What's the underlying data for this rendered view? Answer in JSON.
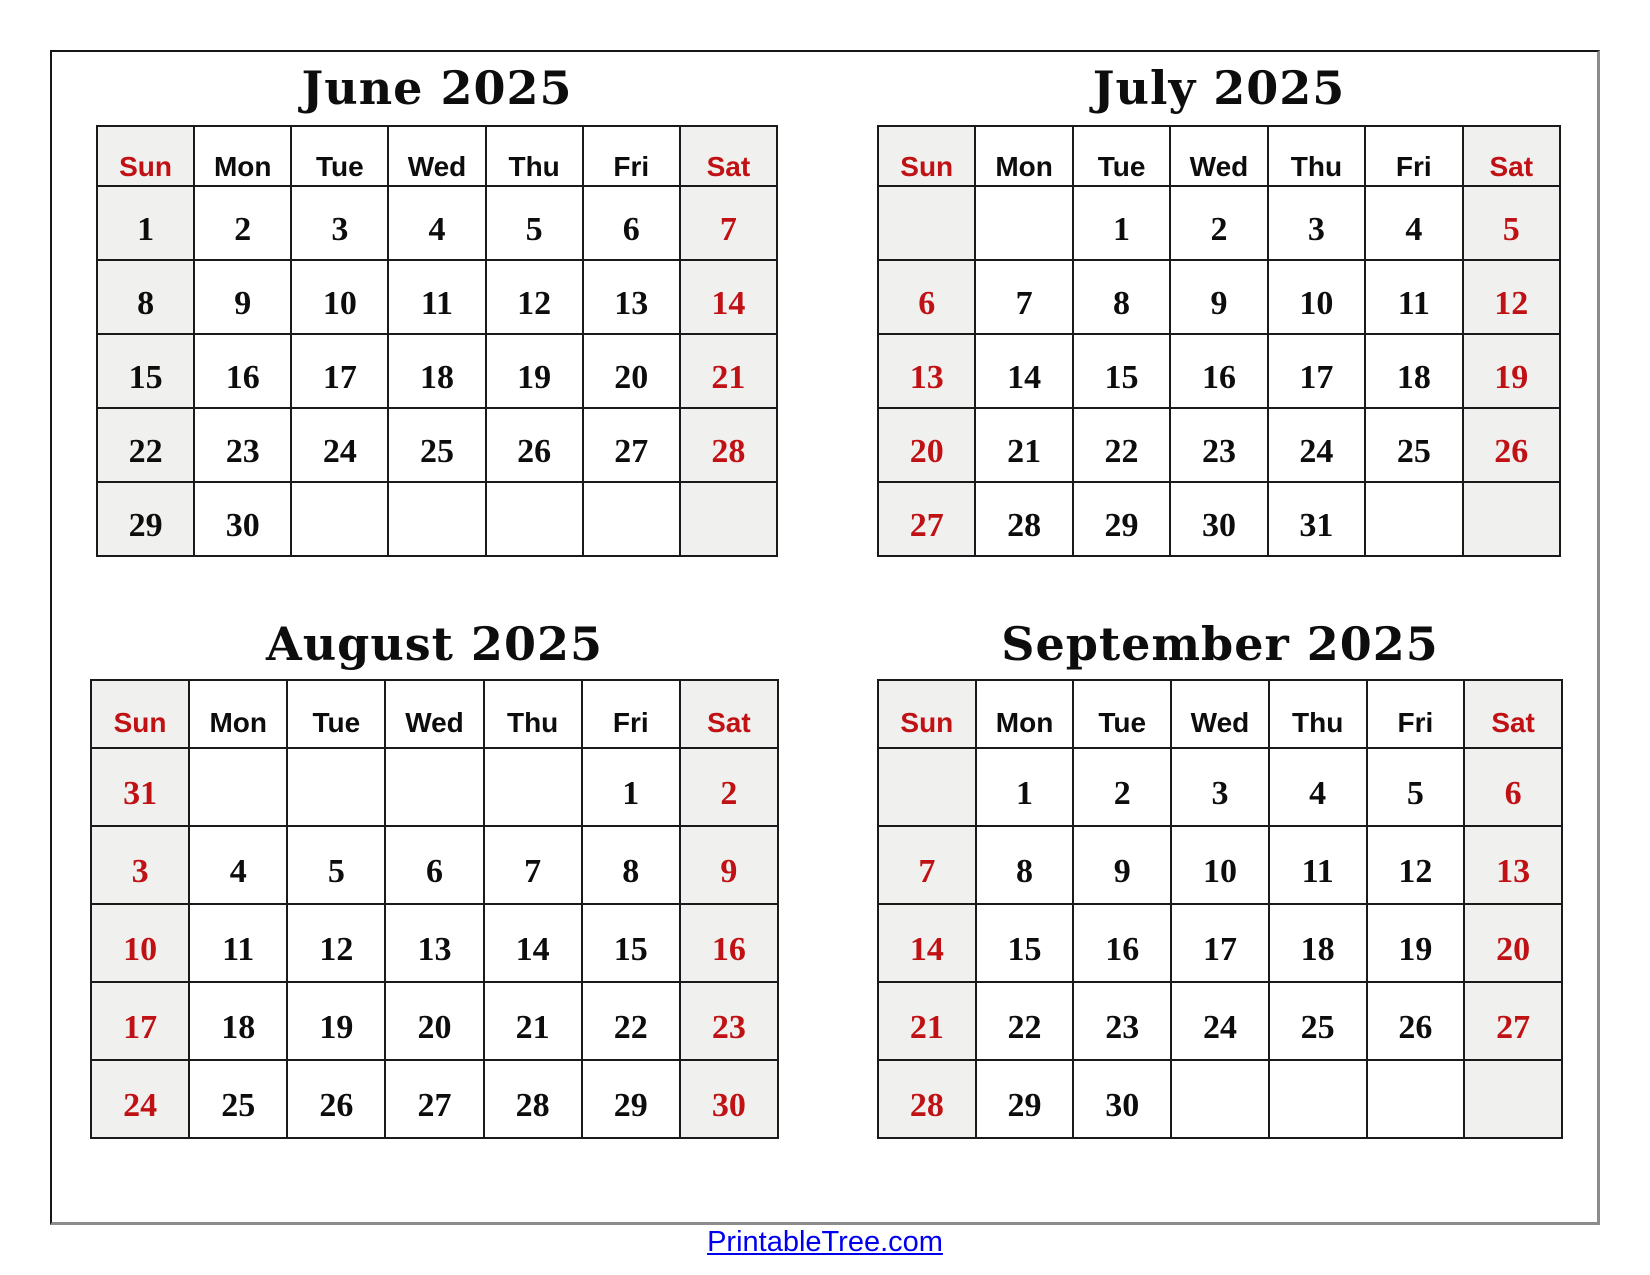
{
  "weekdays": [
    "Sun",
    "Mon",
    "Tue",
    "Wed",
    "Thu",
    "Fri",
    "Sat"
  ],
  "months": [
    {
      "title": "June 2025",
      "red_sundays": false,
      "weeks": [
        [
          "1",
          "2",
          "3",
          "4",
          "5",
          "6",
          "7"
        ],
        [
          "8",
          "9",
          "10",
          "11",
          "12",
          "13",
          "14"
        ],
        [
          "15",
          "16",
          "17",
          "18",
          "19",
          "20",
          "21"
        ],
        [
          "22",
          "23",
          "24",
          "25",
          "26",
          "27",
          "28"
        ],
        [
          "29",
          "30",
          "",
          "",
          "",
          "",
          ""
        ]
      ]
    },
    {
      "title": "July 2025",
      "red_sundays": true,
      "weeks": [
        [
          "",
          "",
          "1",
          "2",
          "3",
          "4",
          "5"
        ],
        [
          "6",
          "7",
          "8",
          "9",
          "10",
          "11",
          "12"
        ],
        [
          "13",
          "14",
          "15",
          "16",
          "17",
          "18",
          "19"
        ],
        [
          "20",
          "21",
          "22",
          "23",
          "24",
          "25",
          "26"
        ],
        [
          "27",
          "28",
          "29",
          "30",
          "31",
          "",
          ""
        ]
      ]
    },
    {
      "title": "August 2025",
      "red_sundays": true,
      "weeks": [
        [
          "31",
          "",
          "",
          "",
          "",
          "1",
          "2"
        ],
        [
          "3",
          "4",
          "5",
          "6",
          "7",
          "8",
          "9"
        ],
        [
          "10",
          "11",
          "12",
          "13",
          "14",
          "15",
          "16"
        ],
        [
          "17",
          "18",
          "19",
          "20",
          "21",
          "22",
          "23"
        ],
        [
          "24",
          "25",
          "26",
          "27",
          "28",
          "29",
          "30"
        ]
      ]
    },
    {
      "title": "September 2025",
      "red_sundays": true,
      "weeks": [
        [
          "",
          "1",
          "2",
          "3",
          "4",
          "5",
          "6"
        ],
        [
          "7",
          "8",
          "9",
          "10",
          "11",
          "12",
          "13"
        ],
        [
          "14",
          "15",
          "16",
          "17",
          "18",
          "19",
          "20"
        ],
        [
          "21",
          "22",
          "23",
          "24",
          "25",
          "26",
          "27"
        ],
        [
          "28",
          "29",
          "30",
          "",
          "",
          "",
          ""
        ]
      ]
    }
  ],
  "footer": {
    "link_text": "PrintableTree.com"
  },
  "colors": {
    "red": "#c01115",
    "weekend_bg": "#f0f0ee",
    "grid_border": "#1a1a1a",
    "link_blue": "#0000ee"
  }
}
